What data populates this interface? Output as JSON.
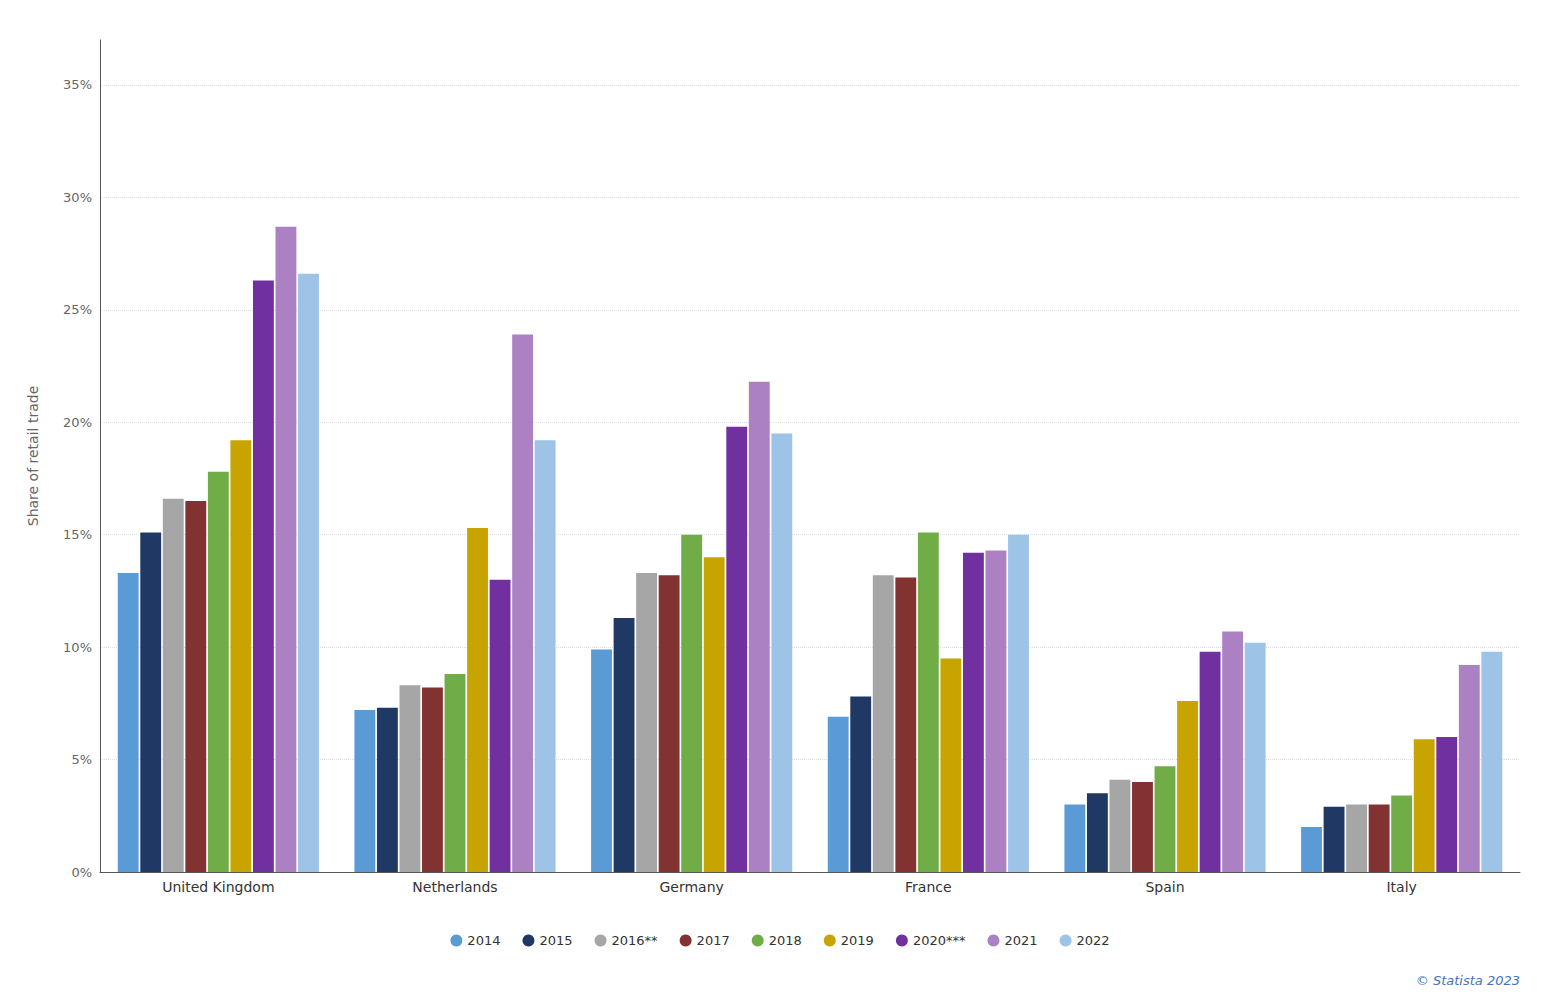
{
  "chart_data": {
    "type": "bar",
    "categories": [
      "United Kingdom",
      "Netherlands",
      "Germany",
      "France",
      "Spain",
      "Italy"
    ],
    "series": [
      {
        "name": "2014",
        "color": "#5B9BD5",
        "values": [
          13.3,
          7.2,
          9.9,
          6.9,
          3.0,
          2.0
        ]
      },
      {
        "name": "2015",
        "color": "#1F3864",
        "values": [
          15.1,
          7.3,
          11.3,
          7.8,
          3.5,
          2.9
        ]
      },
      {
        "name": "2016**",
        "color": "#A6A6A6",
        "values": [
          16.6,
          8.3,
          13.3,
          13.2,
          4.1,
          3.0
        ]
      },
      {
        "name": "2017",
        "color": "#833232",
        "values": [
          16.5,
          8.2,
          13.2,
          13.1,
          4.0,
          3.0
        ]
      },
      {
        "name": "2018",
        "color": "#70AD47",
        "values": [
          17.8,
          8.8,
          15.0,
          15.1,
          4.7,
          3.4
        ]
      },
      {
        "name": "2019",
        "color": "#C8A400",
        "values": [
          19.2,
          15.3,
          14.0,
          9.5,
          7.6,
          5.9
        ]
      },
      {
        "name": "2020***",
        "color": "#7030A0",
        "values": [
          26.3,
          13.0,
          19.8,
          14.2,
          9.8,
          6.0
        ]
      },
      {
        "name": "2021",
        "color": "#AC81C4",
        "values": [
          28.7,
          23.9,
          21.8,
          14.3,
          10.7,
          9.2
        ]
      },
      {
        "name": "2022",
        "color": "#9DC3E6",
        "values": [
          26.6,
          19.2,
          19.5,
          15.0,
          10.2,
          9.8
        ]
      }
    ],
    "ylabel": "Share of retail trade",
    "ylim": [
      0,
      37
    ],
    "yticks": [
      {
        "value": 0,
        "label": "0%"
      },
      {
        "value": 5,
        "label": "5%"
      },
      {
        "value": 10,
        "label": "10%"
      },
      {
        "value": 15,
        "label": "15%"
      },
      {
        "value": 20,
        "label": "20%"
      },
      {
        "value": 25,
        "label": "25%"
      },
      {
        "value": 30,
        "label": "30%"
      },
      {
        "value": 35,
        "label": "35%"
      }
    ],
    "grid": true,
    "legend": "bottom",
    "annotations": [
      "© Statista 2023"
    ]
  }
}
